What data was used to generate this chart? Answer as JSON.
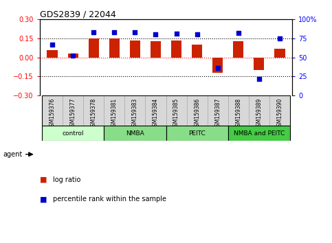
{
  "title": "GDS2839 / 22044",
  "samples": [
    "GSM159376",
    "GSM159377",
    "GSM159378",
    "GSM159381",
    "GSM159383",
    "GSM159384",
    "GSM159385",
    "GSM159386",
    "GSM159387",
    "GSM159388",
    "GSM159389",
    "GSM159390"
  ],
  "log_ratio": [
    0.055,
    0.03,
    0.15,
    0.15,
    0.135,
    0.13,
    0.135,
    0.1,
    -0.12,
    0.13,
    -0.1,
    0.07
  ],
  "percentile_rank": [
    67,
    52,
    83,
    83,
    83,
    80,
    81,
    80,
    36,
    82,
    22,
    75
  ],
  "group_defs": [
    {
      "start": 0,
      "end": 3,
      "label": "control",
      "color": "#ccffcc"
    },
    {
      "start": 3,
      "end": 6,
      "label": "NMBA",
      "color": "#88dd88"
    },
    {
      "start": 6,
      "end": 9,
      "label": "PEITC",
      "color": "#88dd88"
    },
    {
      "start": 9,
      "end": 12,
      "label": "NMBA and PEITC",
      "color": "#44cc44"
    }
  ],
  "ylim_left": [
    -0.3,
    0.3
  ],
  "ylim_right": [
    0,
    100
  ],
  "yticks_left": [
    -0.3,
    -0.15,
    0,
    0.15,
    0.3
  ],
  "yticks_right": [
    0,
    25,
    50,
    75,
    100
  ],
  "bar_color": "#cc2200",
  "scatter_color": "#0000cc",
  "bar_width": 0.5,
  "cell_color": "#d8d8d8",
  "cell_border_color": "#aaaaaa",
  "agent_label": "agent",
  "legend_items": [
    {
      "label": "log ratio",
      "color": "#cc2200"
    },
    {
      "label": "percentile rank within the sample",
      "color": "#0000cc"
    }
  ]
}
